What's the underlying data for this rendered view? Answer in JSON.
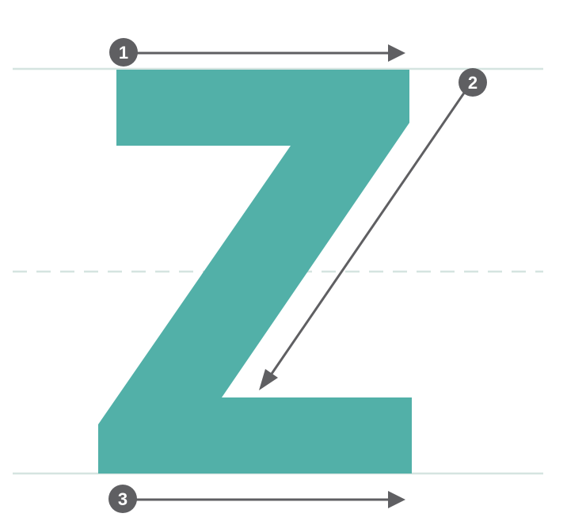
{
  "letter": {
    "name": "Z",
    "fill_color": "#52b0a8"
  },
  "guides": {
    "line_color": "#d5e4e0"
  },
  "arrows": {
    "color": "#5f5f62"
  },
  "strokes": [
    {
      "number": "1",
      "direction": "left-to-right"
    },
    {
      "number": "2",
      "direction": "diagonal-down-left"
    },
    {
      "number": "3",
      "direction": "left-to-right"
    }
  ]
}
